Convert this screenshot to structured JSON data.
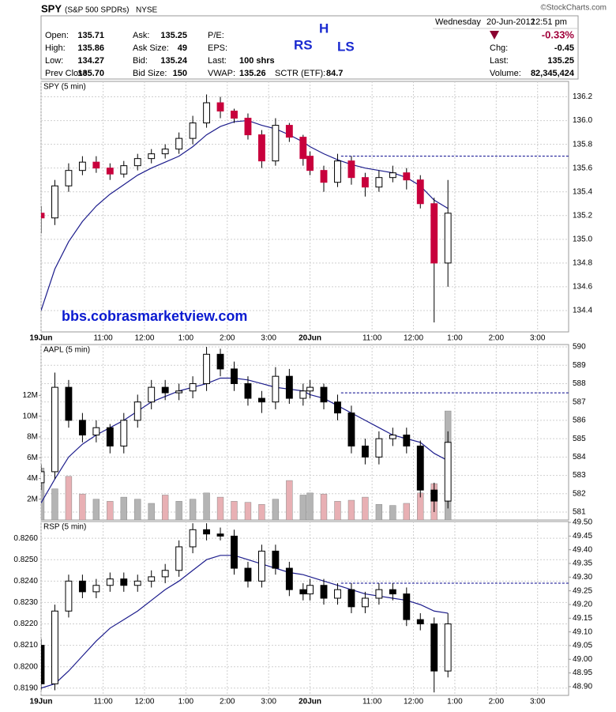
{
  "header": {
    "symbol": "SPY",
    "name": "(S&P 500 SPDRs)",
    "exchange": "NYSE",
    "source": "©StockCharts.com",
    "weekday": "Wednesday",
    "date": "20-Jun-2012",
    "time": "12:51 pm",
    "rows": [
      [
        {
          "label": "Open:",
          "value": "135.71"
        },
        {
          "label": "Ask:",
          "value": "135.25"
        },
        {
          "label": "P/E:"
        }
      ],
      [
        {
          "label": "High:",
          "value": "135.86"
        },
        {
          "label": "Ask Size:",
          "value": "49"
        },
        {
          "label": "EPS:"
        }
      ],
      [
        {
          "label": "Low:",
          "value": "134.27"
        },
        {
          "label": "Bid:",
          "value": "135.24"
        },
        {
          "label": "Last:",
          "value": "100 shrs"
        }
      ],
      [
        {
          "label": "Prev Close:",
          "value": "135.70"
        },
        {
          "label": "Bid Size:",
          "value": "150"
        },
        {
          "label": "VWAP:",
          "value": "135.26"
        },
        {
          "label": "SCTR (ETF):",
          "value": "84.7"
        }
      ]
    ],
    "change_pct": "-0.33%",
    "summary": [
      {
        "label": "Chg:",
        "value": "-0.45"
      },
      {
        "label": "Last:",
        "value": "135.25"
      },
      {
        "label": "Volume:",
        "value": "82,345,424"
      }
    ]
  },
  "annotations": [
    "RS",
    "H",
    "LS"
  ],
  "watermark": "bbs.cobrasmarketview.com",
  "chart_data": [
    {
      "type": "candlestick",
      "label": "SPY (5 min)",
      "axis_side": "right",
      "down_color": "#c8003c",
      "up_color": "#ffffff",
      "ma_color": "#1c1c8c",
      "grid": true,
      "xlim": [
        0,
        153
      ],
      "xticks": [
        {
          "value": 0,
          "label": "19Jun"
        },
        {
          "value": 18,
          "label": "11:00"
        },
        {
          "value": 30,
          "label": "12:00"
        },
        {
          "value": 42,
          "label": "1:00"
        },
        {
          "value": 54,
          "label": "2:00"
        },
        {
          "value": 66,
          "label": "3:00"
        },
        {
          "value": 78,
          "label": "20Jun"
        },
        {
          "value": 96,
          "label": "11:00"
        },
        {
          "value": 108,
          "label": "12:00"
        },
        {
          "value": 120,
          "label": "1:00"
        },
        {
          "value": 132,
          "label": "2:00"
        },
        {
          "value": 144,
          "label": "3:00"
        }
      ],
      "ylim": [
        134.22,
        136.33
      ],
      "yticks": [
        134.4,
        134.6,
        134.8,
        {
          "value": 135,
          "label": "135.0"
        },
        135.2,
        135.4,
        135.6,
        135.8,
        {
          "value": 136,
          "label": "136.0"
        },
        136.2
      ],
      "reference": {
        "value": 135.7,
        "from": 87,
        "color": "#00008b"
      },
      "x": [
        0,
        4,
        8,
        12,
        16,
        20,
        24,
        28,
        32,
        36,
        40,
        44,
        48,
        52,
        56,
        60,
        64,
        68,
        72,
        76,
        78,
        82,
        86,
        90,
        94,
        98,
        102,
        106,
        110,
        114,
        118
      ],
      "open": [
        135.22,
        135.18,
        135.45,
        135.58,
        135.65,
        135.6,
        135.55,
        135.62,
        135.68,
        135.72,
        135.76,
        135.85,
        135.98,
        136.15,
        136.08,
        136.02,
        135.88,
        135.66,
        135.96,
        135.86,
        135.7,
        135.58,
        135.48,
        135.66,
        135.52,
        135.44,
        135.52,
        135.56,
        135.5,
        135.3,
        134.8
      ],
      "high": [
        135.28,
        135.5,
        135.64,
        135.7,
        135.7,
        135.64,
        135.66,
        135.72,
        135.76,
        135.8,
        135.9,
        136.04,
        136.22,
        136.2,
        136.1,
        136.06,
        135.92,
        136.02,
        135.98,
        135.88,
        135.74,
        135.62,
        135.72,
        135.7,
        135.56,
        135.58,
        135.62,
        135.6,
        135.54,
        135.35,
        135.5
      ],
      "low": [
        135.05,
        135.12,
        135.4,
        135.54,
        135.56,
        135.5,
        135.52,
        135.58,
        135.64,
        135.68,
        135.72,
        135.8,
        135.94,
        136.02,
        135.98,
        135.84,
        135.6,
        135.62,
        135.82,
        135.62,
        135.54,
        135.4,
        135.44,
        135.46,
        135.36,
        135.4,
        135.48,
        135.42,
        135.26,
        134.3,
        134.6
      ],
      "close": [
        135.18,
        135.45,
        135.58,
        135.65,
        135.6,
        135.55,
        135.62,
        135.68,
        135.72,
        135.76,
        135.85,
        135.98,
        136.15,
        136.08,
        136.02,
        135.88,
        135.66,
        135.96,
        135.86,
        135.68,
        135.58,
        135.48,
        135.66,
        135.52,
        135.44,
        135.52,
        135.56,
        135.5,
        135.3,
        134.8,
        135.22
      ],
      "ma": [
        134.4,
        134.75,
        134.98,
        135.15,
        135.28,
        135.38,
        135.46,
        135.54,
        135.6,
        135.65,
        135.7,
        135.78,
        135.88,
        135.95,
        135.99,
        136.0,
        135.96,
        135.93,
        135.88,
        135.82,
        135.78,
        135.72,
        135.67,
        135.63,
        135.6,
        135.58,
        135.56,
        135.52,
        135.45,
        135.33,
        135.26
      ]
    },
    {
      "type": "candlestick",
      "label": "AAPL (5 min)",
      "axis_side": "right",
      "y2_side": "left",
      "down_color": "#000000",
      "up_color": "#ffffff",
      "ma_color": "#1c1c8c",
      "volume_up_color": "#b4b4b4",
      "volume_down_color": "#e8b0b4",
      "grid": true,
      "xlim": [
        0,
        153
      ],
      "xticks": [
        0,
        18,
        30,
        42,
        54,
        66,
        78,
        96,
        108,
        120,
        132,
        144
      ],
      "ylim": [
        580.57,
        590.13
      ],
      "yticks": [
        581,
        582,
        583,
        584,
        585,
        586,
        587,
        588,
        589,
        590
      ],
      "y2lim": [
        0,
        16900000
      ],
      "y2ticks": [
        {
          "value": 2000000,
          "label": "2M"
        },
        {
          "value": 4000000,
          "label": "4M"
        },
        {
          "value": 6000000,
          "label": "6M"
        },
        {
          "value": 8000000,
          "label": "8M"
        },
        {
          "value": 10000000,
          "label": "10M"
        },
        {
          "value": 12000000,
          "label": "12M"
        }
      ],
      "reference": {
        "value": 587.5,
        "from": 87,
        "color": "#00008b"
      },
      "x": [
        0,
        4,
        8,
        12,
        16,
        20,
        24,
        28,
        32,
        36,
        40,
        44,
        48,
        52,
        56,
        60,
        64,
        68,
        72,
        76,
        78,
        82,
        86,
        90,
        94,
        98,
        102,
        106,
        110,
        114,
        118
      ],
      "open": [
        582.6,
        583.2,
        587.8,
        586.0,
        585.2,
        585.6,
        584.6,
        586.0,
        587.0,
        587.8,
        587.5,
        587.6,
        588.0,
        589.6,
        588.8,
        588.0,
        587.2,
        587.0,
        588.4,
        587.2,
        587.6,
        587.8,
        587.0,
        586.4,
        584.6,
        584.0,
        585.0,
        585.2,
        584.6,
        582.2,
        581.6
      ],
      "high": [
        583.6,
        588.6,
        588.2,
        586.4,
        586.0,
        585.8,
        586.4,
        587.4,
        588.2,
        588.2,
        588.0,
        588.4,
        590.0,
        589.9,
        589.2,
        588.4,
        587.6,
        588.9,
        588.8,
        588.0,
        588.2,
        588.0,
        587.4,
        586.8,
        585.0,
        585.4,
        585.6,
        585.6,
        584.9,
        582.6,
        585.4
      ],
      "low": [
        582.2,
        582.8,
        585.6,
        584.8,
        584.8,
        584.2,
        584.2,
        585.6,
        586.6,
        587.1,
        587.1,
        587.2,
        587.6,
        588.4,
        587.6,
        586.8,
        586.4,
        586.6,
        586.9,
        586.8,
        587.2,
        586.6,
        586.0,
        584.2,
        583.6,
        583.6,
        584.6,
        584.2,
        581.8,
        581.0,
        581.2
      ],
      "close": [
        583.2,
        587.8,
        586.0,
        585.2,
        585.6,
        584.6,
        586.0,
        587.0,
        587.8,
        587.5,
        587.6,
        588.0,
        589.6,
        588.8,
        588.0,
        587.2,
        587.0,
        588.4,
        587.2,
        587.6,
        587.8,
        587.0,
        586.4,
        584.6,
        584.0,
        585.0,
        585.2,
        584.6,
        582.2,
        581.6,
        584.8
      ],
      "ma": [
        581.5,
        582.8,
        584.0,
        584.7,
        585.2,
        585.6,
        586.0,
        586.5,
        587.0,
        587.3,
        587.6,
        587.8,
        588.0,
        588.3,
        588.3,
        588.2,
        588.0,
        587.8,
        587.7,
        587.6,
        587.4,
        587.2,
        586.8,
        586.4,
        586.0,
        585.6,
        585.2,
        585.0,
        584.8,
        584.2,
        583.8
      ],
      "volume": [
        5000000,
        3000000,
        4200000,
        2500000,
        2000000,
        1800000,
        2200000,
        2000000,
        1600000,
        2400000,
        1800000,
        2000000,
        2600000,
        2200000,
        1800000,
        1700000,
        1500000,
        2000000,
        3800000,
        2400000,
        2600000,
        2500000,
        1800000,
        1900000,
        2200000,
        1500000,
        1400000,
        1600000,
        2600000,
        3500000,
        10500000
      ]
    },
    {
      "type": "candlestick",
      "label": "RSP (5 min)",
      "axis_side": "left",
      "y2_side": "right",
      "down_color": "#000000",
      "up_color": "#ffffff",
      "ma_color": "#1c1c8c",
      "grid": true,
      "xlim": [
        0,
        153
      ],
      "xticks": [
        {
          "value": 0,
          "label": "19Jun"
        },
        {
          "value": 18,
          "label": "11:00"
        },
        {
          "value": 30,
          "label": "12:00"
        },
        {
          "value": 42,
          "label": "1:00"
        },
        {
          "value": 54,
          "label": "2:00"
        },
        {
          "value": 66,
          "label": "3:00"
        },
        {
          "value": 78,
          "label": "20Jun"
        },
        {
          "value": 96,
          "label": "11:00"
        },
        {
          "value": 108,
          "label": "12:00"
        },
        {
          "value": 120,
          "label": "1:00"
        },
        {
          "value": 132,
          "label": "2:00"
        },
        {
          "value": 144,
          "label": "3:00"
        }
      ],
      "ylim": [
        0.81866,
        0.82678
      ],
      "yticks": [
        {
          "value": 0.819,
          "label": "0.8190"
        },
        {
          "value": 0.82,
          "label": "0.8200"
        },
        {
          "value": 0.821,
          "label": "0.8210"
        },
        {
          "value": 0.822,
          "label": "0.8220"
        },
        {
          "value": 0.823,
          "label": "0.8230"
        },
        {
          "value": 0.824,
          "label": "0.8240"
        },
        {
          "value": 0.825,
          "label": "0.8250"
        },
        {
          "value": 0.826,
          "label": "0.8260"
        }
      ],
      "y2lim": [
        48.868,
        49.503
      ],
      "y2ticks": [
        {
          "value": 48.9,
          "label": "48.90"
        },
        48.95,
        {
          "value": 49,
          "label": "49.00"
        },
        49.05,
        {
          "value": 49.1,
          "label": "49.10"
        },
        49.15,
        {
          "value": 49.2,
          "label": "49.20"
        },
        49.25,
        {
          "value": 49.3,
          "label": "49.30"
        },
        49.35,
        {
          "value": 49.4,
          "label": "49.40"
        },
        49.45,
        {
          "value": 49.5,
          "label": "49.50"
        }
      ],
      "reference": {
        "value": 0.8239,
        "from": 87,
        "color": "#00008b"
      },
      "x": [
        0,
        4,
        8,
        12,
        16,
        20,
        24,
        28,
        32,
        36,
        40,
        44,
        48,
        52,
        56,
        60,
        64,
        68,
        72,
        76,
        78,
        82,
        86,
        90,
        94,
        98,
        102,
        106,
        110,
        114,
        118
      ],
      "open": [
        0.821,
        0.8192,
        0.8226,
        0.824,
        0.8235,
        0.8238,
        0.8241,
        0.8238,
        0.824,
        0.8242,
        0.8245,
        0.8256,
        0.8264,
        0.8262,
        0.8261,
        0.8246,
        0.824,
        0.8254,
        0.8246,
        0.8236,
        0.8234,
        0.8238,
        0.8232,
        0.8236,
        0.8228,
        0.8232,
        0.8236,
        0.8234,
        0.8222,
        0.822,
        0.8198
      ],
      "high": [
        0.8213,
        0.8229,
        0.8243,
        0.8243,
        0.8241,
        0.8244,
        0.8244,
        0.8243,
        0.8245,
        0.8248,
        0.8259,
        0.8267,
        0.8267,
        0.8265,
        0.8264,
        0.8249,
        0.8257,
        0.8257,
        0.8249,
        0.8239,
        0.8241,
        0.8241,
        0.8239,
        0.8239,
        0.8235,
        0.8239,
        0.8239,
        0.8237,
        0.8225,
        0.8223,
        0.8225
      ],
      "low": [
        0.8189,
        0.8189,
        0.8223,
        0.8232,
        0.8232,
        0.8235,
        0.8235,
        0.8235,
        0.8237,
        0.8239,
        0.8242,
        0.8253,
        0.8259,
        0.8259,
        0.8243,
        0.8237,
        0.8237,
        0.8243,
        0.8233,
        0.8231,
        0.8231,
        0.8229,
        0.8229,
        0.8225,
        0.8225,
        0.8229,
        0.8231,
        0.8219,
        0.8217,
        0.8188,
        0.8195
      ],
      "close": [
        0.8192,
        0.8226,
        0.824,
        0.8235,
        0.8238,
        0.8241,
        0.8238,
        0.824,
        0.8242,
        0.8245,
        0.8256,
        0.8264,
        0.8262,
        0.8261,
        0.8246,
        0.824,
        0.8254,
        0.8246,
        0.8236,
        0.8234,
        0.8238,
        0.8232,
        0.8236,
        0.8228,
        0.8232,
        0.8236,
        0.8234,
        0.8222,
        0.822,
        0.8198,
        0.822
      ],
      "ma": [
        0.819,
        0.8192,
        0.8198,
        0.8205,
        0.8212,
        0.8218,
        0.8222,
        0.8226,
        0.8231,
        0.8236,
        0.824,
        0.8245,
        0.825,
        0.8252,
        0.8252,
        0.825,
        0.8248,
        0.8246,
        0.8244,
        0.8243,
        0.8242,
        0.824,
        0.8238,
        0.8236,
        0.8234,
        0.8233,
        0.8232,
        0.8231,
        0.8229,
        0.8226,
        0.8225
      ]
    }
  ]
}
